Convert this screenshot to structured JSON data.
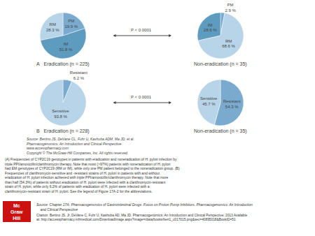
{
  "chart_data": [
    {
      "type": "pie",
      "title": "A   Eradication (n = 225)",
      "categories": [
        "PM",
        "RM",
        "IM"
      ],
      "values": [
        19.9,
        28.3,
        51.8
      ],
      "value_labels": [
        "19.9 %",
        "28.3 %",
        "51.8 %"
      ],
      "colors": [
        "#7aabcf",
        "#b8d4e8",
        "#5d9bbf"
      ],
      "data_labels": true
    },
    {
      "type": "pie",
      "title": "Non-eradication (n = 35)",
      "categories": [
        "PM",
        "IM",
        "RM"
      ],
      "values": [
        2.9,
        28.6,
        68.6
      ],
      "value_labels": [
        "2.9 %",
        "28.6 %",
        "68.6 %"
      ],
      "colors": [
        "#7aabcf",
        "#5d9bbf",
        "#b8d4e8"
      ],
      "data_labels": true
    },
    {
      "type": "pie",
      "title": "B   Eradication (n = 228)",
      "categories": [
        "Resistant",
        "Sensitive"
      ],
      "values": [
        6.2,
        93.8
      ],
      "value_labels": [
        "6.2 %",
        "93.8 %"
      ],
      "colors": [
        "#7aabcf",
        "#b8d4e8"
      ],
      "data_labels": true
    },
    {
      "type": "pie",
      "title": "Non-eradication (n = 35)",
      "categories": [
        "Resistant",
        "Sensitive"
      ],
      "values": [
        54.3,
        45.7
      ],
      "value_labels": [
        "54.3 %",
        "45.7 %"
      ],
      "colors": [
        "#7aabcf",
        "#b8d4e8"
      ],
      "data_labels": true
    }
  ],
  "annotations": [
    "P < 0.0001",
    "P < 0.0001"
  ],
  "notes": [
    "Source: Bertino JS, DeVane CL, Fuhr U, Kashuba ADM, Ma JD, et al.",
    "Pharmacogenomics: An Introduction and Clinical Perspective.",
    "www.accesspharmacy.com",
    "Copyright © The McGraw-Hill Companies, Inc. All rights reserved."
  ],
  "caption": "(A) Frequencies of CYP2C19 genotypes in patients with eradication and noneradication of H. pylori infection by triple PPI/amoxicillin/clarithromycin therapy. Note that most (>97%) patients with noneradication of H. pylori had EM genotypes of CYP2C19 (RM or IM), while only one PM patient belonged to the noneradication group. (B) Frequencies of clarithromycin-sensitive and -resistant strains of H. pylori in patients with and without eradication of H. pylori infection achieved with triple PPI/amoxicillin/clarithromycin therapy. Note that more than half (54.3%) of patients without eradication of H. pylori were infected with a clarithromycin-resistant strain of H. pylori, while only 6.2% of patients with eradication of H. pylori were infected with a clarithromycin-resistant strain of H. pylori. See the legend of Figure 17A-2 for the abbreviations.",
  "source": "Source: Chapter 17A: Pharmacogenomics of Gastrointestinal Drugs: Focus on Proton Pump Inhibitors. Pharmacogenomics: An Introduction\n    and Clinical Perspective",
  "citation": "Citation: Bertino JS, Jr, DeVane C, Fuhr U, Kashuba AD, Ma JD. Pharmacogenomics: An Introduction and Clinical Perspective; 2013 Available\nat: http://accesspharmacy.mhmedical.com/DownloadImage.aspx?image=/data/books/bert1_c017015.png&sec=40895018&BookID=51",
  "logo": {
    "text": [
      "Mc",
      "Graw",
      "Hill"
    ],
    "color": "#cc1111"
  }
}
